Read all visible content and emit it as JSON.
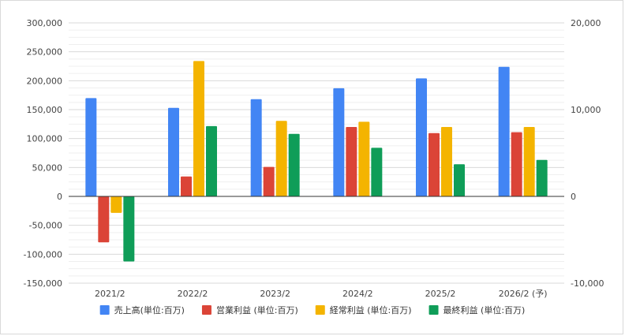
{
  "chart_data": {
    "type": "bar",
    "categories": [
      "2021/2",
      "2022/2",
      "2023/2",
      "2024/2",
      "2025/2",
      "2026/2 (予)"
    ],
    "series": [
      {
        "name": "売上高(単位:百万)",
        "axis": "left",
        "color": "#4285f4",
        "values": [
          170000,
          153000,
          168000,
          187000,
          204000,
          224000
        ]
      },
      {
        "name": "営業利益 (単位:百万)",
        "axis": "right",
        "color": "#db4437",
        "values": [
          -5300,
          2300,
          3400,
          8000,
          7300,
          7400
        ]
      },
      {
        "name": "経常利益 (単位:百万)",
        "axis": "right",
        "color": "#f4b400",
        "values": [
          -1900,
          15600,
          8700,
          8600,
          8000,
          8000
        ]
      },
      {
        "name": "最終利益 (単位:百万)",
        "axis": "right",
        "color": "#0f9d58",
        "values": [
          -7500,
          8100,
          7200,
          5600,
          3700,
          4200
        ]
      }
    ],
    "left_axis": {
      "ylim": [
        -150000,
        300000
      ],
      "ticks": [
        300000,
        250000,
        200000,
        150000,
        100000,
        50000,
        0,
        -50000,
        -100000,
        -150000
      ],
      "tick_labels": [
        "300,000",
        "250,000",
        "200,000",
        "150,000",
        "100,000",
        "50,000",
        "0",
        "-50,000",
        "-100,000",
        "-150,000"
      ]
    },
    "right_axis": {
      "ylim": [
        -10000,
        20000
      ],
      "ticks": [
        20000,
        10000,
        0,
        -10000
      ],
      "tick_labels": [
        "20,000",
        "10,000",
        "0",
        "-10,000"
      ]
    },
    "grid": true,
    "legend_position": "bottom"
  }
}
